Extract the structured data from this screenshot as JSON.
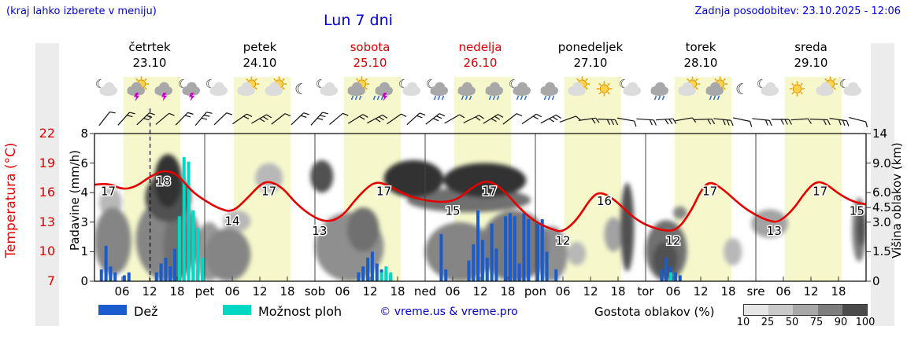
{
  "header": {
    "location_hint": "(kraj lahko izberete v meniju)",
    "title": "Lun 7 dni",
    "last_update": "Zadnja posodobitev: 23.10.2025 - 12:06"
  },
  "colors": {
    "link_blue": "#0000d6",
    "temp_red": "#e60000",
    "weekend_red": "#dd0000",
    "weekday_black": "#000000",
    "rain_blue": "#1a5ccc",
    "shower_cyan": "#00d8c4",
    "daylight_yellow": "#f6f8cc",
    "cloud_density_segments": [
      "#e6e6e6",
      "#c9c9c9",
      "#a8a8a8",
      "#7e7e7e",
      "#4b4b4b"
    ]
  },
  "y_axes": {
    "temperature": {
      "label": "Temperatura (°C)",
      "ticks": [
        "22",
        "19",
        "16",
        "13",
        "10",
        "7"
      ]
    },
    "precipitation": {
      "label": "Padavine (mm/h)",
      "ticks": [
        "8",
        "6",
        "4",
        "3",
        "1",
        "0"
      ]
    },
    "cloud_height": {
      "label": "Višina oblakov (km)",
      "ticks": [
        "14",
        "9.0",
        "6.0",
        "4.5",
        "3.0",
        "1.5",
        "0"
      ]
    }
  },
  "days": [
    {
      "name": "četrtek",
      "date": "23.10",
      "weekend": false,
      "icons": [
        "moon-cloud",
        "sun-cloud-bolt",
        "cloud-bolt",
        "moon-cloud-bolt"
      ]
    },
    {
      "name": "petek",
      "date": "24.10",
      "weekend": false,
      "icons": [
        "moon-cloud",
        "sun-cloud",
        "sun-cloud",
        "moon"
      ]
    },
    {
      "name": "sobota",
      "date": "25.10",
      "weekend": true,
      "icons": [
        "moon-cloud",
        "sun-cloud-rain",
        "cloud-bolt-rain",
        "moon-cloud"
      ]
    },
    {
      "name": "nedelja",
      "date": "26.10",
      "weekend": true,
      "icons": [
        "moon-cloud-rain",
        "cloud-rain",
        "cloud-rain",
        "moon-cloud-rain"
      ]
    },
    {
      "name": "ponedeljek",
      "date": "27.10",
      "weekend": false,
      "icons": [
        "cloud-rain",
        "sun-cloud",
        "sun",
        "moon-cloud"
      ]
    },
    {
      "name": "torek",
      "date": "28.10",
      "weekend": false,
      "icons": [
        "cloud-rain",
        "sun-cloud",
        "sun-cloud-rain",
        "moon"
      ]
    },
    {
      "name": "sreda",
      "date": "29.10",
      "weekend": false,
      "icons": [
        "moon-cloud",
        "sun",
        "sun-cloud",
        "moon-cloud"
      ]
    }
  ],
  "bottom_axis": {
    "hour_labels": [
      "06",
      "12",
      "18"
    ],
    "day_abbrevs": [
      "pet",
      "sob",
      "ned",
      "pon",
      "tor",
      "sre"
    ]
  },
  "legend": {
    "rain_label": "Dež",
    "showers_label": "Možnost ploh",
    "copyright": "© vreme.us & vreme.pro",
    "cloud_density_label": "Gostota oblakov (%)",
    "density_ticks": [
      "10",
      "25",
      "50",
      "75",
      "90",
      "100"
    ]
  },
  "chart_data": {
    "type": "line",
    "subtype": "meteogram",
    "hours_span": 168,
    "now_marker_hour": 12.1,
    "daylight_band_hours": [
      6.3,
      18.7
    ],
    "temperature_c": {
      "unit": "°C",
      "range": [
        7,
        22
      ],
      "points": [
        [
          0,
          16.8
        ],
        [
          3,
          17.0
        ],
        [
          6,
          16.3
        ],
        [
          9,
          16.6
        ],
        [
          12,
          17.6
        ],
        [
          15,
          18.3
        ],
        [
          18,
          17.9
        ],
        [
          21,
          16.2
        ],
        [
          24,
          15.2
        ],
        [
          27,
          14.4
        ],
        [
          30,
          14.0
        ],
        [
          33,
          15.3
        ],
        [
          36,
          16.8
        ],
        [
          38,
          17.2
        ],
        [
          41,
          16.5
        ],
        [
          44,
          14.8
        ],
        [
          48,
          13.4
        ],
        [
          51,
          13.0
        ],
        [
          54,
          13.6
        ],
        [
          57,
          15.4
        ],
        [
          60,
          16.8
        ],
        [
          62,
          17.1
        ],
        [
          65,
          16.5
        ],
        [
          68,
          15.7
        ],
        [
          72,
          15.2
        ],
        [
          76,
          15.0
        ],
        [
          79,
          15.3
        ],
        [
          82,
          16.4
        ],
        [
          84,
          17.0
        ],
        [
          86,
          17.2
        ],
        [
          89,
          16.3
        ],
        [
          93,
          14.2
        ],
        [
          96,
          13.0
        ],
        [
          100,
          12.2
        ],
        [
          102,
          12.0
        ],
        [
          105,
          13.2
        ],
        [
          108,
          15.4
        ],
        [
          110,
          16.1
        ],
        [
          113,
          15.4
        ],
        [
          117,
          13.6
        ],
        [
          120,
          12.7
        ],
        [
          124,
          12.1
        ],
        [
          127,
          12.2
        ],
        [
          130,
          14.2
        ],
        [
          132,
          16.2
        ],
        [
          134,
          17.2
        ],
        [
          137,
          16.3
        ],
        [
          141,
          14.6
        ],
        [
          144,
          13.7
        ],
        [
          147,
          13.1
        ],
        [
          149,
          13.0
        ],
        [
          152,
          14.2
        ],
        [
          155,
          16.2
        ],
        [
          157,
          17.1
        ],
        [
          159,
          17.0
        ],
        [
          162,
          15.9
        ],
        [
          165,
          15.1
        ],
        [
          168,
          14.8
        ]
      ]
    },
    "temperature_labels": [
      [
        3,
        17
      ],
      [
        15,
        18
      ],
      [
        30,
        14
      ],
      [
        38,
        17
      ],
      [
        49,
        13
      ],
      [
        63,
        17
      ],
      [
        78,
        15
      ],
      [
        86,
        17
      ],
      [
        102,
        12
      ],
      [
        111,
        16
      ],
      [
        126,
        12
      ],
      [
        134,
        17
      ],
      [
        148,
        13
      ],
      [
        158,
        17
      ],
      [
        166,
        15
      ]
    ],
    "rain_mm_h": [
      [
        1,
        0.4
      ],
      [
        2,
        1.4
      ],
      [
        3,
        0.5
      ],
      [
        4,
        0.3
      ],
      [
        6,
        0.2
      ],
      [
        7,
        0.3
      ],
      [
        13,
        0.3
      ],
      [
        14,
        0.6
      ],
      [
        15,
        0.8
      ],
      [
        16,
        0.5
      ],
      [
        17,
        1.2
      ],
      [
        18,
        0.8
      ],
      [
        21,
        0.5
      ],
      [
        22,
        0.4
      ],
      [
        57,
        0.3
      ],
      [
        58,
        0.5
      ],
      [
        59,
        0.8
      ],
      [
        60,
        1.0
      ],
      [
        61,
        0.6
      ],
      [
        62,
        0.4
      ],
      [
        63,
        0.3
      ],
      [
        64,
        0.2
      ],
      [
        75,
        2.2
      ],
      [
        76,
        0.4
      ],
      [
        81,
        0.7
      ],
      [
        82,
        1.5
      ],
      [
        83,
        3.4
      ],
      [
        84,
        1.8
      ],
      [
        85,
        0.8
      ],
      [
        86,
        2.9
      ],
      [
        87,
        1.2
      ],
      [
        89,
        3.2
      ],
      [
        90,
        3.3
      ],
      [
        91,
        3.2
      ],
      [
        92,
        0.6
      ],
      [
        93,
        3.3
      ],
      [
        94,
        3.1
      ],
      [
        96,
        2.9
      ],
      [
        97,
        3.1
      ],
      [
        98,
        1.0
      ],
      [
        100,
        0.4
      ],
      [
        123,
        0.4
      ],
      [
        124,
        0.8
      ],
      [
        125,
        0.5
      ],
      [
        126,
        0.3
      ],
      [
        127,
        0.2
      ]
    ],
    "showers_mm_h": [
      [
        18,
        3.2
      ],
      [
        19,
        6.4
      ],
      [
        20,
        6.1
      ],
      [
        21,
        3.4
      ],
      [
        22,
        2.6
      ],
      [
        23,
        0.8
      ],
      [
        62,
        0.3
      ],
      [
        63,
        0.5
      ],
      [
        64,
        0.3
      ],
      [
        125,
        0.3
      ]
    ],
    "cloud_cover_regions": [
      [
        0,
        8,
        0.3,
        4.5,
        50
      ],
      [
        1,
        6,
        3.5,
        6.5,
        25
      ],
      [
        9,
        23,
        0,
        5.5,
        50
      ],
      [
        11,
        21,
        3,
        8,
        75
      ],
      [
        13,
        19,
        4.5,
        10.5,
        90
      ],
      [
        15,
        21,
        0,
        4,
        60
      ],
      [
        22,
        28,
        0,
        3,
        40
      ],
      [
        24,
        34,
        0,
        2.7,
        50
      ],
      [
        28,
        34,
        2.5,
        4.2,
        25
      ],
      [
        35,
        41,
        6,
        9,
        25
      ],
      [
        47,
        52,
        6,
        9.5,
        75
      ],
      [
        48,
        63,
        0,
        4,
        45
      ],
      [
        55,
        62,
        1.5,
        4.5,
        60
      ],
      [
        63,
        76,
        5.5,
        9.5,
        90
      ],
      [
        76,
        94,
        5.5,
        9,
        90
      ],
      [
        68,
        95,
        4,
        6.5,
        60
      ],
      [
        72,
        87,
        0,
        3,
        50
      ],
      [
        84,
        99,
        0,
        4.2,
        55
      ],
      [
        96,
        103,
        0,
        2.8,
        45
      ],
      [
        103,
        107,
        0.8,
        2,
        25
      ],
      [
        111,
        115,
        1.5,
        3.5,
        35
      ],
      [
        114.5,
        117.5,
        0.5,
        7,
        75
      ],
      [
        120,
        129,
        0,
        3.2,
        60
      ],
      [
        121.5,
        127,
        0.2,
        2,
        75
      ],
      [
        126,
        129,
        3.3,
        4.6,
        50
      ],
      [
        137,
        141,
        0.8,
        2.2,
        25
      ],
      [
        143,
        151,
        2.2,
        4.3,
        35
      ],
      [
        165,
        168,
        1,
        5.5,
        55
      ],
      [
        166,
        168,
        1.8,
        4,
        75
      ]
    ],
    "wind_dirs_deg": [
      38,
      42,
      46,
      50,
      44,
      40,
      46,
      55,
      60,
      52,
      46,
      42,
      50,
      58,
      62,
      55,
      48,
      52,
      60,
      64,
      58,
      52,
      56,
      62,
      70,
      82,
      92,
      100,
      94,
      86,
      80,
      88,
      96,
      102,
      96,
      90,
      86,
      92,
      98,
      104
    ],
    "axis_scales": {
      "precip_breakpoints": [
        [
          0,
          0
        ],
        [
          1,
          0.2
        ],
        [
          3,
          0.4
        ],
        [
          4,
          0.6
        ],
        [
          6,
          0.8
        ],
        [
          8,
          1
        ]
      ],
      "cloud_km_breakpoints": [
        [
          0,
          0
        ],
        [
          1.5,
          0.2
        ],
        [
          3,
          0.4
        ],
        [
          4.5,
          0.5
        ],
        [
          6,
          0.6
        ],
        [
          9,
          0.8
        ],
        [
          14,
          1
        ]
      ]
    }
  }
}
